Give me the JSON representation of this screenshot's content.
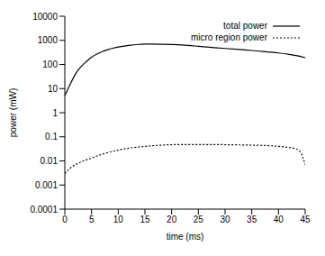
{
  "chart_data": {
    "type": "line",
    "x_label": "time (ms)",
    "y_label": "power (mW)",
    "log": "y",
    "grid": false,
    "legend": "upper right",
    "xlim": [
      0,
      45
    ],
    "xticks": [
      0,
      5,
      10,
      15,
      20,
      25,
      30,
      35,
      40,
      45
    ],
    "ylim": [
      0.0001,
      10000
    ],
    "yticks": [
      0.0001,
      0.001,
      0.01,
      0.1,
      1,
      10,
      100,
      1000,
      10000
    ],
    "x": [
      0,
      1,
      2,
      3,
      4,
      5,
      6,
      7,
      8,
      9,
      10,
      12,
      14,
      15,
      16,
      18,
      20,
      22,
      25,
      28,
      30,
      33,
      35,
      38,
      40,
      42,
      43,
      44,
      45
    ],
    "series": [
      {
        "name": "total power",
        "color": "#000000",
        "line_style": "solid",
        "values": [
          5,
          15,
          40,
          80,
          130,
          200,
          270,
          340,
          410,
          470,
          530,
          620,
          680,
          700,
          700,
          690,
          670,
          640,
          570,
          500,
          460,
          410,
          380,
          330,
          300,
          260,
          240,
          220,
          190
        ]
      },
      {
        "name": "micro region power",
        "color": "#000000",
        "line_style": "dotted",
        "values": [
          0.003,
          0.005,
          0.007,
          0.009,
          0.011,
          0.013,
          0.016,
          0.019,
          0.022,
          0.025,
          0.028,
          0.034,
          0.038,
          0.04,
          0.042,
          0.045,
          0.047,
          0.048,
          0.048,
          0.048,
          0.047,
          0.046,
          0.045,
          0.043,
          0.04,
          0.036,
          0.033,
          0.025,
          0.007
        ]
      }
    ]
  }
}
